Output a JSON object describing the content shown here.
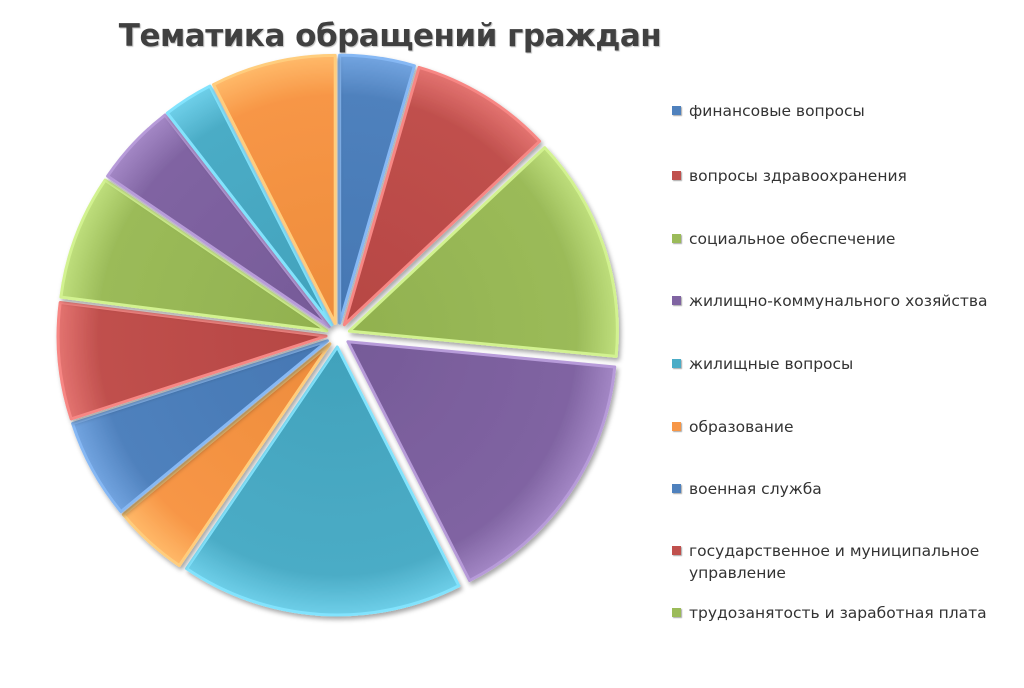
{
  "chart_data": {
    "type": "pie",
    "title": "Тематика обращений граждан",
    "legend_position": "right",
    "exploded": true,
    "slices": [
      {
        "label": "финансовые вопросы",
        "value": 4.5,
        "color": "#4f81bd"
      },
      {
        "label": "вопросы здравоохранения",
        "value": 8.5,
        "color": "#c0504d"
      },
      {
        "label": "социальное обеспечение",
        "value": 13.5,
        "color": "#9bbb59"
      },
      {
        "label": "жилищно-коммунального хозяйства",
        "value": 16,
        "color": "#8064a2"
      },
      {
        "label": "жилищные вопросы",
        "value": 17,
        "color": "#4bacc6"
      },
      {
        "label": "образование",
        "value": 4.5,
        "color": "#f79646"
      },
      {
        "label": "военная служба",
        "value": 6,
        "color": "#4f81bd"
      },
      {
        "label": "государственное и муниципальное управление",
        "value": 7,
        "color": "#c0504d"
      },
      {
        "label": "трудозанятость и заработная плата",
        "value": 7.5,
        "color": "#9bbb59"
      },
      {
        "label": "",
        "value": 5,
        "color": "#8064a2"
      },
      {
        "label": "",
        "value": 3,
        "color": "#4bacc6"
      },
      {
        "label": "",
        "value": 7.5,
        "color": "#f79646"
      }
    ]
  }
}
